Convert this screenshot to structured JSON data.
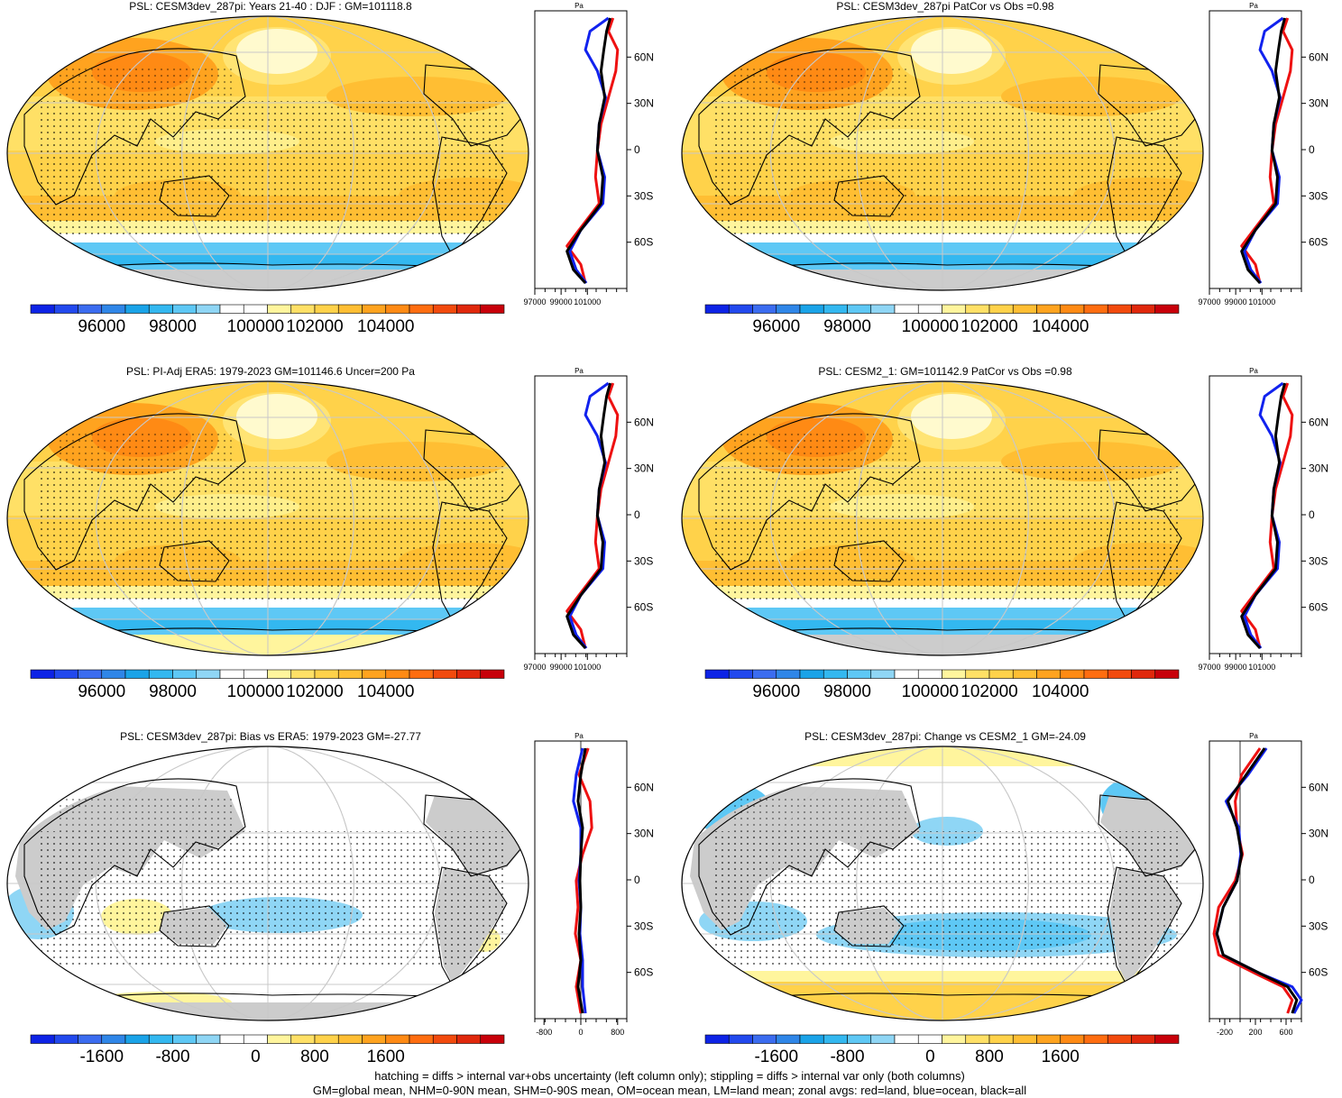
{
  "chart_data": [
    {
      "type": "heatmap",
      "title": "PSL: CESM3dev_287pi: Years 21-40 : DJF : GM=101118.8",
      "colorbar_ticks": [
        "96000",
        "98000",
        "100000",
        "102000",
        "104000"
      ],
      "zonal": {
        "unit": "Pa",
        "lat_ticks": [
          "60N",
          "30N",
          "0",
          "30S",
          "60S"
        ],
        "x_ticks": [
          "97000",
          "99000",
          "101000"
        ],
        "xlim": [
          97000,
          104000
        ],
        "kind": "abs"
      }
    },
    {
      "type": "heatmap",
      "title": "PSL: CESM3dev_287pi PatCor vs Obs =0.98",
      "colorbar_ticks": [
        "96000",
        "98000",
        "100000",
        "102000",
        "104000"
      ],
      "zonal": {
        "unit": "Pa",
        "lat_ticks": [
          "60N",
          "30N",
          "0",
          "30S",
          "60S"
        ],
        "x_ticks": [
          "97000",
          "99000",
          "101000"
        ],
        "xlim": [
          97000,
          104000
        ],
        "kind": "abs"
      }
    },
    {
      "type": "heatmap",
      "title": "PSL: PI-Adj ERA5: 1979-2023 GM=101146.6 Uncer=200 Pa",
      "colorbar_ticks": [
        "96000",
        "98000",
        "100000",
        "102000",
        "104000"
      ],
      "zonal": {
        "unit": "Pa",
        "lat_ticks": [
          "60N",
          "30N",
          "0",
          "30S",
          "60S"
        ],
        "x_ticks": [
          "97000",
          "99000",
          "101000"
        ],
        "xlim": [
          97000,
          104000
        ],
        "kind": "abs"
      }
    },
    {
      "type": "heatmap",
      "title": "PSL: CESM2_1: GM=101142.9 PatCor vs Obs =0.98",
      "colorbar_ticks": [
        "96000",
        "98000",
        "100000",
        "102000",
        "104000"
      ],
      "zonal": {
        "unit": "Pa",
        "lat_ticks": [
          "60N",
          "30N",
          "0",
          "30S",
          "60S"
        ],
        "x_ticks": [
          "97000",
          "99000",
          "101000"
        ],
        "xlim": [
          97000,
          104000
        ],
        "kind": "abs"
      }
    },
    {
      "type": "heatmap",
      "title": "PSL: CESM3dev_287pi: Bias vs ERA5: 1979-2023 GM=-27.77",
      "colorbar_ticks": [
        "-1600",
        "-800",
        "0",
        "800",
        "1600"
      ],
      "zonal": {
        "unit": "Pa",
        "lat_ticks": [
          "60N",
          "30N",
          "0",
          "30S",
          "60S"
        ],
        "x_ticks": [
          "-800",
          "0",
          "800"
        ],
        "xlim": [
          -1000,
          1000
        ],
        "kind": "diff"
      }
    },
    {
      "type": "heatmap",
      "title": "PSL: CESM3dev_287pi: Change vs CESM2_1 GM=-24.09",
      "colorbar_ticks": [
        "-1600",
        "-800",
        "0",
        "800",
        "1600"
      ],
      "zonal": {
        "unit": "Pa",
        "lat_ticks": [
          "60N",
          "30N",
          "0",
          "30S",
          "60S"
        ],
        "x_ticks": [
          "-200",
          "200",
          "600"
        ],
        "xlim": [
          -400,
          800
        ],
        "kind": "diff"
      }
    }
  ],
  "colors": {
    "palette": [
      "#0d23e6",
      "#2249ee",
      "#3b6cf0",
      "#2f86e8",
      "#1aa3e8",
      "#33b8f0",
      "#5ec8f5",
      "#8fd6f5",
      "#ffffff",
      "#ffffff",
      "#fff59d",
      "#ffe066",
      "#ffd24a",
      "#ffbe33",
      "#ffa31f",
      "#ff8a14",
      "#ff6d10",
      "#f24a0d",
      "#e0280c",
      "#c8000a"
    ],
    "land": "#cccccc",
    "zonal_land": "#ee1111",
    "zonal_ocean": "#1122ee",
    "zonal_all": "#000000"
  },
  "footnotes": [
    "hatching = diffs > internal var+obs uncertainty (left column only); stippling = diffs > internal var only (both columns)",
    "GM=global mean, NHM=0-90N mean, SHM=0-90S mean, OM=ocean mean, LM=land mean; zonal avgs: red=land, blue=ocean, black=all"
  ]
}
